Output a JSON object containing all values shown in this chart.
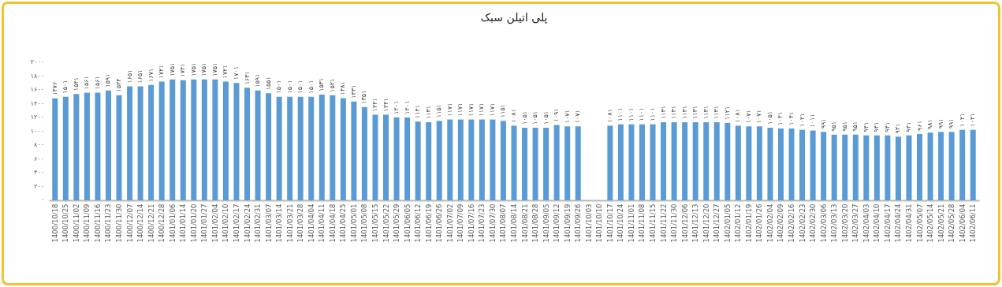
{
  "chart_data": {
    "type": "bar",
    "title": "پلی اتیلن سبک",
    "color": "#5b9bd5",
    "grid": false,
    "categories": [
      "1400/10/18",
      "1400/10/25",
      "1400/11/02",
      "1400/11/09",
      "1400/11/16",
      "1400/11/23",
      "1400/11/30",
      "1400/12/07",
      "1400/12/14",
      "1400/12/21",
      "1400/12/28",
      "1401/01/06",
      "1401/01/14",
      "1401/01/20",
      "1401/01/27",
      "1401/02/04",
      "1401/02/10",
      "1401/02/17",
      "1401/02/24",
      "1401/02/31",
      "1401/03/07",
      "1401/03/14",
      "1401/03/21",
      "1401/03/28",
      "1401/04/04",
      "1401/04/11",
      "1401/04/18",
      "1401/04/25",
      "1401/05/01",
      "1401/05/08",
      "1401/05/15",
      "1401/05/22",
      "1401/05/29",
      "1401/06/05",
      "1401/06/12",
      "1401/06/19",
      "1401/06/26",
      "1401/07/02",
      "1401/07/09",
      "1401/07/16",
      "1401/07/23",
      "1401/07/30",
      "1401/08/07",
      "1401/08/14",
      "1401/08/21",
      "1401/08/28",
      "1401/09/05",
      "1401/09/12",
      "1401/09/19",
      "1401/09/26",
      "1401/10/03",
      "1401/10/10",
      "1401/10/17",
      "1401/10/24",
      "1401/11/01",
      "1401/11/08",
      "1401/11/15",
      "1401/11/22",
      "1401/11/30",
      "1401/12/06",
      "1401/12/13",
      "1401/12/20",
      "1401/12/27",
      "1402/01/05",
      "1402/01/12",
      "1402/01/19",
      "1402/01/26",
      "1402/02/04",
      "1402/02/09",
      "1402/02/16",
      "1402/02/23",
      "1402/02/30",
      "1402/03/06",
      "1402/03/13",
      "1402/03/20",
      "1402/03/27",
      "1402/04/03",
      "1402/04/10",
      "1402/04/17",
      "1402/04/24",
      "1402/04/31",
      "1402/05/07",
      "1402/05/14",
      "1402/05/21",
      "1402/05/28",
      "1402/06/04",
      "1402/06/11"
    ],
    "values": [
      1476,
      1501,
      1541,
      1561,
      1561,
      1591,
      1524,
      1651,
      1651,
      1671,
      1721,
      1751,
      1741,
      1751,
      1751,
      1751,
      1721,
      1701,
      1631,
      1591,
      1551,
      1501,
      1501,
      1501,
      1501,
      1531,
      1521,
      1481,
      1431,
      1351,
      1241,
      1241,
      1201,
      1201,
      1141,
      1131,
      1151,
      1171,
      1171,
      1171,
      1171,
      1171,
      1151,
      1081,
      1051,
      1051,
      1051,
      1091,
      1071,
      1071,
      null,
      null,
      1081,
      1101,
      1101,
      1101,
      1101,
      1131,
      1131,
      1131,
      1131,
      1131,
      1131,
      1121,
      1081,
      1071,
      1071,
      1051,
      1041,
      1041,
      1021,
      1011,
      991,
      951,
      951,
      951,
      941,
      941,
      941,
      921,
      941,
      961,
      981,
      991,
      991,
      1021,
      1021
    ],
    "value_labels": [
      "۱۴۷۶",
      "۱۵۰۱",
      "۱۵۴۱",
      "۱۵۶۱",
      "۱۵۶۱",
      "۱۵۹۱",
      "۱۵۲۴",
      "۱۶۵۱",
      "۱۶۵۱",
      "۱۶۷۱",
      "۱۷۲۱",
      "۱۷۵۱",
      "۱۷۴۱",
      "۱۷۵۱",
      "۱۷۵۱",
      "۱۷۵۱",
      "۱۷۲۱",
      "۱۷۰۱",
      "۱۶۳۱",
      "۱۵۹۱",
      "۱۵۵۱",
      "۱۵۰۱",
      "۱۵۰۱",
      "۱۵۰۱",
      "۱۵۰۱",
      "۱۵۳۱",
      "۱۵۲۱",
      "۱۴۸۱",
      "۱۴۳۱",
      "۱۳۵۱",
      "۱۲۴۱",
      "۱۲۴۱",
      "۱۲۰۱",
      "۱۲۰۱",
      "۱۱۴۱",
      "۱۱۳۱",
      "۱۱۵۱",
      "۱۱۷۱",
      "۱۱۷۱",
      "۱۱۷۱",
      "۱۱۷۱",
      "۱۱۷۱",
      "۱۱۵۱",
      "۱۰۸۱",
      "۱۰۵۱",
      "۱۰۵۱",
      "۱۰۵۱",
      "۱۰۹۱",
      "۱۰۷۱",
      "۱۰۷۱",
      null,
      null,
      "۱۰۸۱",
      "۱۱۰۱",
      "۱۱۰۱",
      "۱۱۰۱",
      "۱۱۰۱",
      "۱۱۳۱",
      "۱۱۳۱",
      "۱۱۳۱",
      "۱۱۳۱",
      "۱۱۳۱",
      "۱۱۳۱",
      "۱۱۲۱",
      "۱۰۸۱",
      "۱۰۷۱",
      "۱۰۷۱",
      "۱۰۵۱",
      "۱۰۴۱",
      "۱۰۴۱",
      "۱۰۲۱",
      "۱۰۱۱",
      "۹۹۱",
      "۹۵۱",
      "۹۵۱",
      "۹۵۱",
      "۹۴۱",
      "۹۴۱",
      "۹۴۱",
      "۹۲۱",
      "۹۴۱",
      "۹۶۱",
      "۹۸۱",
      "۹۹۱",
      "۹۹۱",
      "۱۰۲۱",
      "۱۰۲۱"
    ],
    "ylim": [
      0,
      2000
    ],
    "yticks": [
      {
        "value": 0,
        "label": "۰"
      },
      {
        "value": 200,
        "label": "۲۰۰"
      },
      {
        "value": 400,
        "label": "۴۰۰"
      },
      {
        "value": 600,
        "label": "۶۰۰"
      },
      {
        "value": 800,
        "label": "۸۰۰"
      },
      {
        "value": 1000,
        "label": "۱۰۰۰"
      },
      {
        "value": 1200,
        "label": "۱۲۰۰"
      },
      {
        "value": 1400,
        "label": "۱۴۰۰"
      },
      {
        "value": 1600,
        "label": "۱۶۰۰"
      },
      {
        "value": 1800,
        "label": "۱۸۰۰"
      },
      {
        "value": 2000,
        "label": "۲۰۰۰"
      }
    ]
  }
}
